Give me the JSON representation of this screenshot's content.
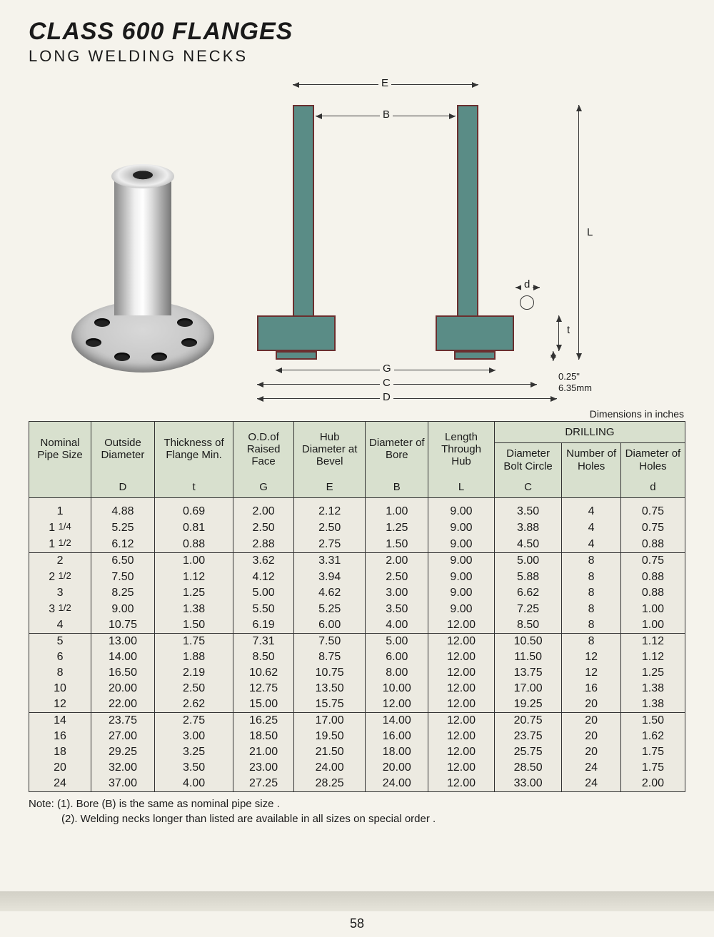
{
  "header": {
    "title": "CLASS 600 FLANGES",
    "subtitle": "LONG WELDING NECKS"
  },
  "diagram": {
    "labels": {
      "E": "E",
      "B": "B",
      "G": "G",
      "C": "C",
      "D": "D",
      "L": "L",
      "d": "d",
      "t": "t"
    },
    "raised_face": {
      "inch": "0.25\"",
      "mm": "6.35mm"
    },
    "colors": {
      "fill": "#5a8c86",
      "stroke": "#6b2f2f",
      "line": "#333333",
      "page_bg": "#f5f3ec",
      "header_bg": "#d8e0ce"
    }
  },
  "table": {
    "caption": "Dimensions in inches",
    "drilling_header": "DRILLING",
    "columns": [
      {
        "label": "Nominal Pipe Size",
        "symbol": ""
      },
      {
        "label": "Outside Diameter",
        "symbol": "D"
      },
      {
        "label": "Thickness of Flange Min.",
        "symbol": "t"
      },
      {
        "label": "O.D.of Raised Face",
        "symbol": "G"
      },
      {
        "label": "Hub Diameter at Bevel",
        "symbol": "E"
      },
      {
        "label": "Diameter of Bore",
        "symbol": "B"
      },
      {
        "label": "Length Through Hub",
        "symbol": "L"
      },
      {
        "label": "Diameter Bolt Circle",
        "symbol": "C"
      },
      {
        "label": "Number of Holes",
        "symbol": ""
      },
      {
        "label": "Diameter of Holes",
        "symbol": "d"
      }
    ],
    "groups": [
      [
        {
          "nps": "1",
          "D": "4.88",
          "t": "0.69",
          "G": "2.00",
          "E": "2.12",
          "B": "1.00",
          "L": "9.00",
          "C": "3.50",
          "n": "4",
          "d": "0.75"
        },
        {
          "nps": "1 1/4",
          "D": "5.25",
          "t": "0.81",
          "G": "2.50",
          "E": "2.50",
          "B": "1.25",
          "L": "9.00",
          "C": "3.88",
          "n": "4",
          "d": "0.75"
        },
        {
          "nps": "1 1/2",
          "D": "6.12",
          "t": "0.88",
          "G": "2.88",
          "E": "2.75",
          "B": "1.50",
          "L": "9.00",
          "C": "4.50",
          "n": "4",
          "d": "0.88"
        }
      ],
      [
        {
          "nps": "2",
          "D": "6.50",
          "t": "1.00",
          "G": "3.62",
          "E": "3.31",
          "B": "2.00",
          "L": "9.00",
          "C": "5.00",
          "n": "8",
          "d": "0.75"
        },
        {
          "nps": "2 1/2",
          "D": "7.50",
          "t": "1.12",
          "G": "4.12",
          "E": "3.94",
          "B": "2.50",
          "L": "9.00",
          "C": "5.88",
          "n": "8",
          "d": "0.88"
        },
        {
          "nps": "3",
          "D": "8.25",
          "t": "1.25",
          "G": "5.00",
          "E": "4.62",
          "B": "3.00",
          "L": "9.00",
          "C": "6.62",
          "n": "8",
          "d": "0.88"
        },
        {
          "nps": "3 1/2",
          "D": "9.00",
          "t": "1.38",
          "G": "5.50",
          "E": "5.25",
          "B": "3.50",
          "L": "9.00",
          "C": "7.25",
          "n": "8",
          "d": "1.00"
        },
        {
          "nps": "4",
          "D": "10.75",
          "t": "1.50",
          "G": "6.19",
          "E": "6.00",
          "B": "4.00",
          "L": "12.00",
          "C": "8.50",
          "n": "8",
          "d": "1.00"
        }
      ],
      [
        {
          "nps": "5",
          "D": "13.00",
          "t": "1.75",
          "G": "7.31",
          "E": "7.50",
          "B": "5.00",
          "L": "12.00",
          "C": "10.50",
          "n": "8",
          "d": "1.12"
        },
        {
          "nps": "6",
          "D": "14.00",
          "t": "1.88",
          "G": "8.50",
          "E": "8.75",
          "B": "6.00",
          "L": "12.00",
          "C": "11.50",
          "n": "12",
          "d": "1.12"
        },
        {
          "nps": "8",
          "D": "16.50",
          "t": "2.19",
          "G": "10.62",
          "E": "10.75",
          "B": "8.00",
          "L": "12.00",
          "C": "13.75",
          "n": "12",
          "d": "1.25"
        },
        {
          "nps": "10",
          "D": "20.00",
          "t": "2.50",
          "G": "12.75",
          "E": "13.50",
          "B": "10.00",
          "L": "12.00",
          "C": "17.00",
          "n": "16",
          "d": "1.38"
        },
        {
          "nps": "12",
          "D": "22.00",
          "t": "2.62",
          "G": "15.00",
          "E": "15.75",
          "B": "12.00",
          "L": "12.00",
          "C": "19.25",
          "n": "20",
          "d": "1.38"
        }
      ],
      [
        {
          "nps": "14",
          "D": "23.75",
          "t": "2.75",
          "G": "16.25",
          "E": "17.00",
          "B": "14.00",
          "L": "12.00",
          "C": "20.75",
          "n": "20",
          "d": "1.50"
        },
        {
          "nps": "16",
          "D": "27.00",
          "t": "3.00",
          "G": "18.50",
          "E": "19.50",
          "B": "16.00",
          "L": "12.00",
          "C": "23.75",
          "n": "20",
          "d": "1.62"
        },
        {
          "nps": "18",
          "D": "29.25",
          "t": "3.25",
          "G": "21.00",
          "E": "21.50",
          "B": "18.00",
          "L": "12.00",
          "C": "25.75",
          "n": "20",
          "d": "1.75"
        },
        {
          "nps": "20",
          "D": "32.00",
          "t": "3.50",
          "G": "23.00",
          "E": "24.00",
          "B": "20.00",
          "L": "12.00",
          "C": "28.50",
          "n": "24",
          "d": "1.75"
        },
        {
          "nps": "24",
          "D": "37.00",
          "t": "4.00",
          "G": "27.25",
          "E": "28.25",
          "B": "24.00",
          "L": "12.00",
          "C": "33.00",
          "n": "24",
          "d": "2.00"
        }
      ]
    ]
  },
  "notes": {
    "n1": "Note: (1). Bore (B) is the same as nominal pipe size .",
    "n2": "(2). Welding necks longer than listed are available in all sizes on special order ."
  },
  "page_number": "58"
}
